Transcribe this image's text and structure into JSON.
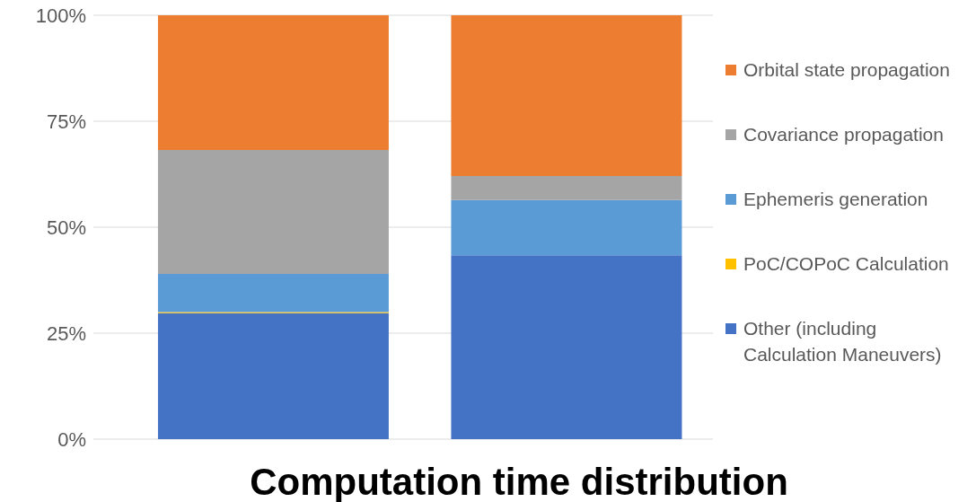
{
  "chart_data": {
    "type": "bar",
    "title": "Computation time distribution",
    "categories": [
      null,
      null
    ],
    "stacked": true,
    "series": [
      {
        "name": "Other (including Calculation Maneuvers)",
        "color": "#4472c4",
        "values": [
          29.7,
          43.4
        ]
      },
      {
        "name": "PoC/COPoC Calculation",
        "color": "#ffc000",
        "values": [
          0.3,
          0
        ]
      },
      {
        "name": "Ephemeris generation",
        "color": "#5b9bd5",
        "values": [
          9.0,
          13.0
        ]
      },
      {
        "name": "Covariance propagation",
        "color": "#a5a5a5",
        "values": [
          29.2,
          5.7
        ]
      },
      {
        "name": "Orbital state propagation",
        "color": "#ed7d31",
        "values": [
          31.8,
          37.9
        ]
      }
    ],
    "ylim": [
      0,
      100
    ],
    "yticks": [
      {
        "value": 0,
        "label": "0%"
      },
      {
        "value": 25,
        "label": "25%"
      },
      {
        "value": 50,
        "label": "50%"
      },
      {
        "value": 75,
        "label": "75%"
      },
      {
        "value": 100,
        "label": "100%"
      }
    ],
    "grid": "y",
    "legend": "right"
  }
}
